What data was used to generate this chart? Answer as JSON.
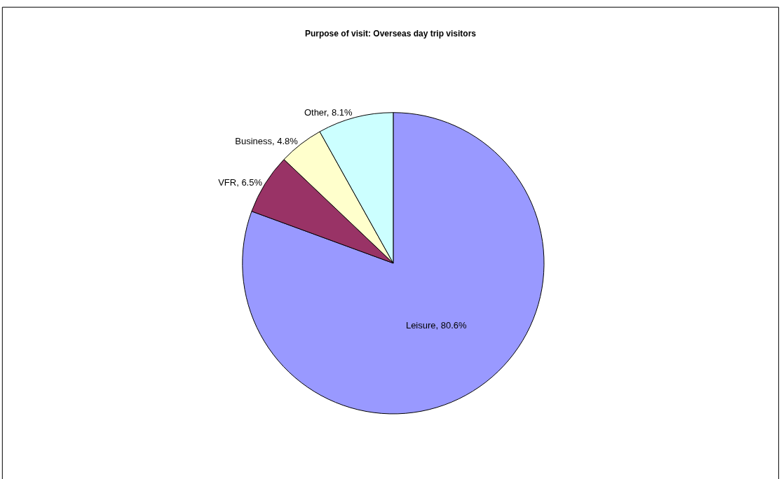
{
  "chart_data": {
    "type": "pie",
    "title": "Purpose of visit: Overseas day trip visitors",
    "categories": [
      "Leisure",
      "VFR",
      "Business",
      "Other"
    ],
    "values": [
      80.6,
      6.5,
      4.8,
      8.1
    ],
    "value_labels": [
      "80.6%",
      "6.5%",
      "4.8%",
      "8.1%"
    ],
    "colors": [
      "#9999ff",
      "#993366",
      "#ffffcc",
      "#ccffff"
    ],
    "legend": false
  }
}
